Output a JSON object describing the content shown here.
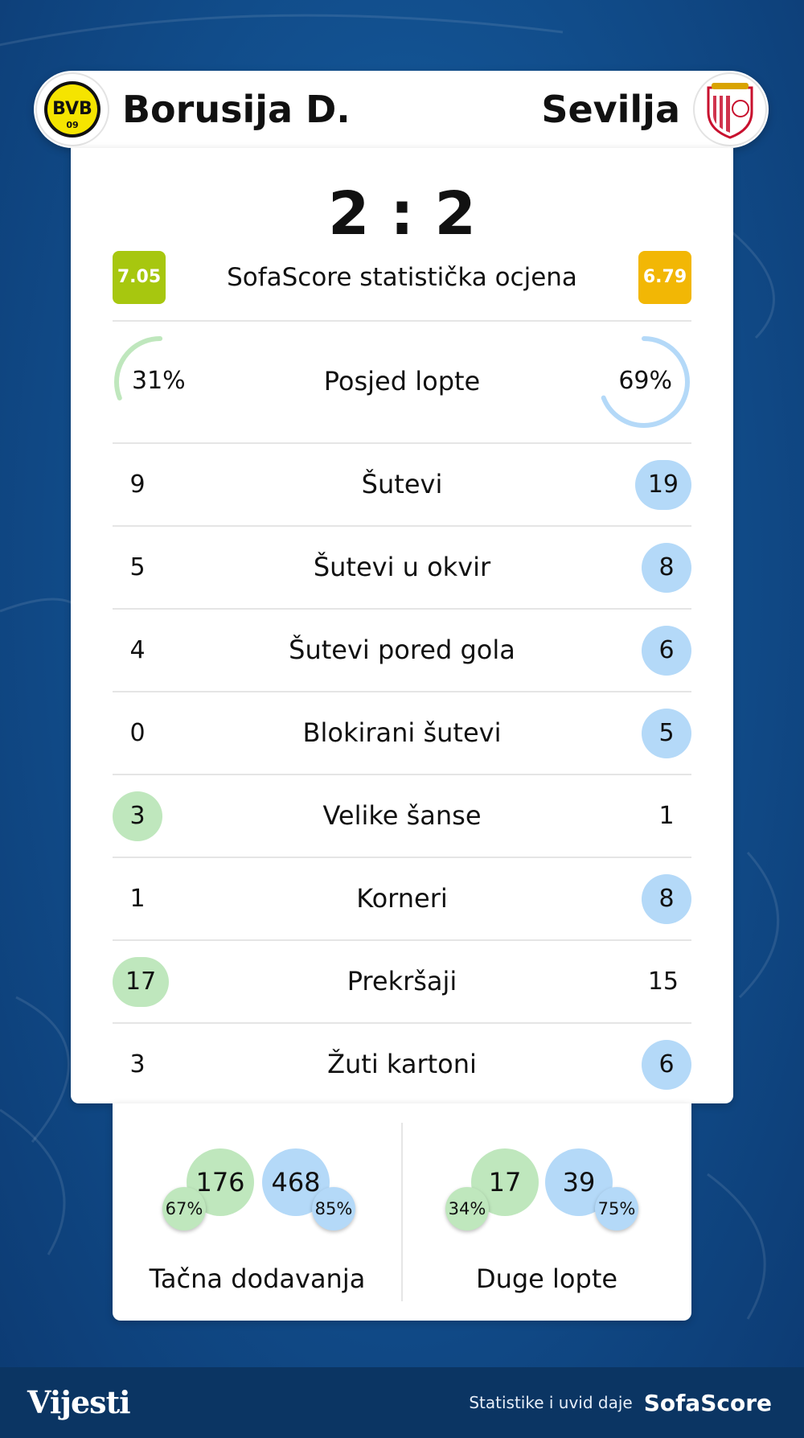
{
  "colors": {
    "home": "#bfe7bd",
    "away": "#b4d9f8",
    "home_ring": "#bfe7bd",
    "away_ring": "#b4d9f8",
    "rating_home": "#a7c70f",
    "rating_away": "#f2b705"
  },
  "header": {
    "home_team": "Borusija D.",
    "away_team": "Sevilja",
    "home_logo_icon": "bvb-crest-icon",
    "away_logo_icon": "sevilla-crest-icon"
  },
  "score": "2 : 2",
  "rating": {
    "home": "7.05",
    "label": "SofaScore statistička ocjena",
    "away": "6.79"
  },
  "possession": {
    "home": "31%",
    "label": "Posjed lopte",
    "away": "69%",
    "home_fraction": 0.31,
    "away_fraction": 0.69
  },
  "stats": [
    {
      "label": "Šutevi",
      "home": "9",
      "away": "19",
      "highlight": "away"
    },
    {
      "label": "Šutevi u okvir",
      "home": "5",
      "away": "8",
      "highlight": "away"
    },
    {
      "label": "Šutevi pored gola",
      "home": "4",
      "away": "6",
      "highlight": "away"
    },
    {
      "label": "Blokirani šutevi",
      "home": "0",
      "away": "5",
      "highlight": "away"
    },
    {
      "label": "Velike šanse",
      "home": "3",
      "away": "1",
      "highlight": "home"
    },
    {
      "label": "Korneri",
      "home": "1",
      "away": "8",
      "highlight": "away"
    },
    {
      "label": "Prekršaji",
      "home": "17",
      "away": "15",
      "highlight": "home"
    },
    {
      "label": "Žuti kartoni",
      "home": "3",
      "away": "6",
      "highlight": "away"
    }
  ],
  "passes": {
    "accurate": {
      "label": "Tačna dodavanja",
      "home": "176",
      "home_pct": "67%",
      "away": "468",
      "away_pct": "85%"
    },
    "long_balls": {
      "label": "Duge lopte",
      "home": "17",
      "home_pct": "34%",
      "away": "39",
      "away_pct": "75%"
    }
  },
  "footer": {
    "brand": "Vijesti",
    "credit": "Statistike i uvid daje",
    "credit_brand": "SofaScore"
  }
}
